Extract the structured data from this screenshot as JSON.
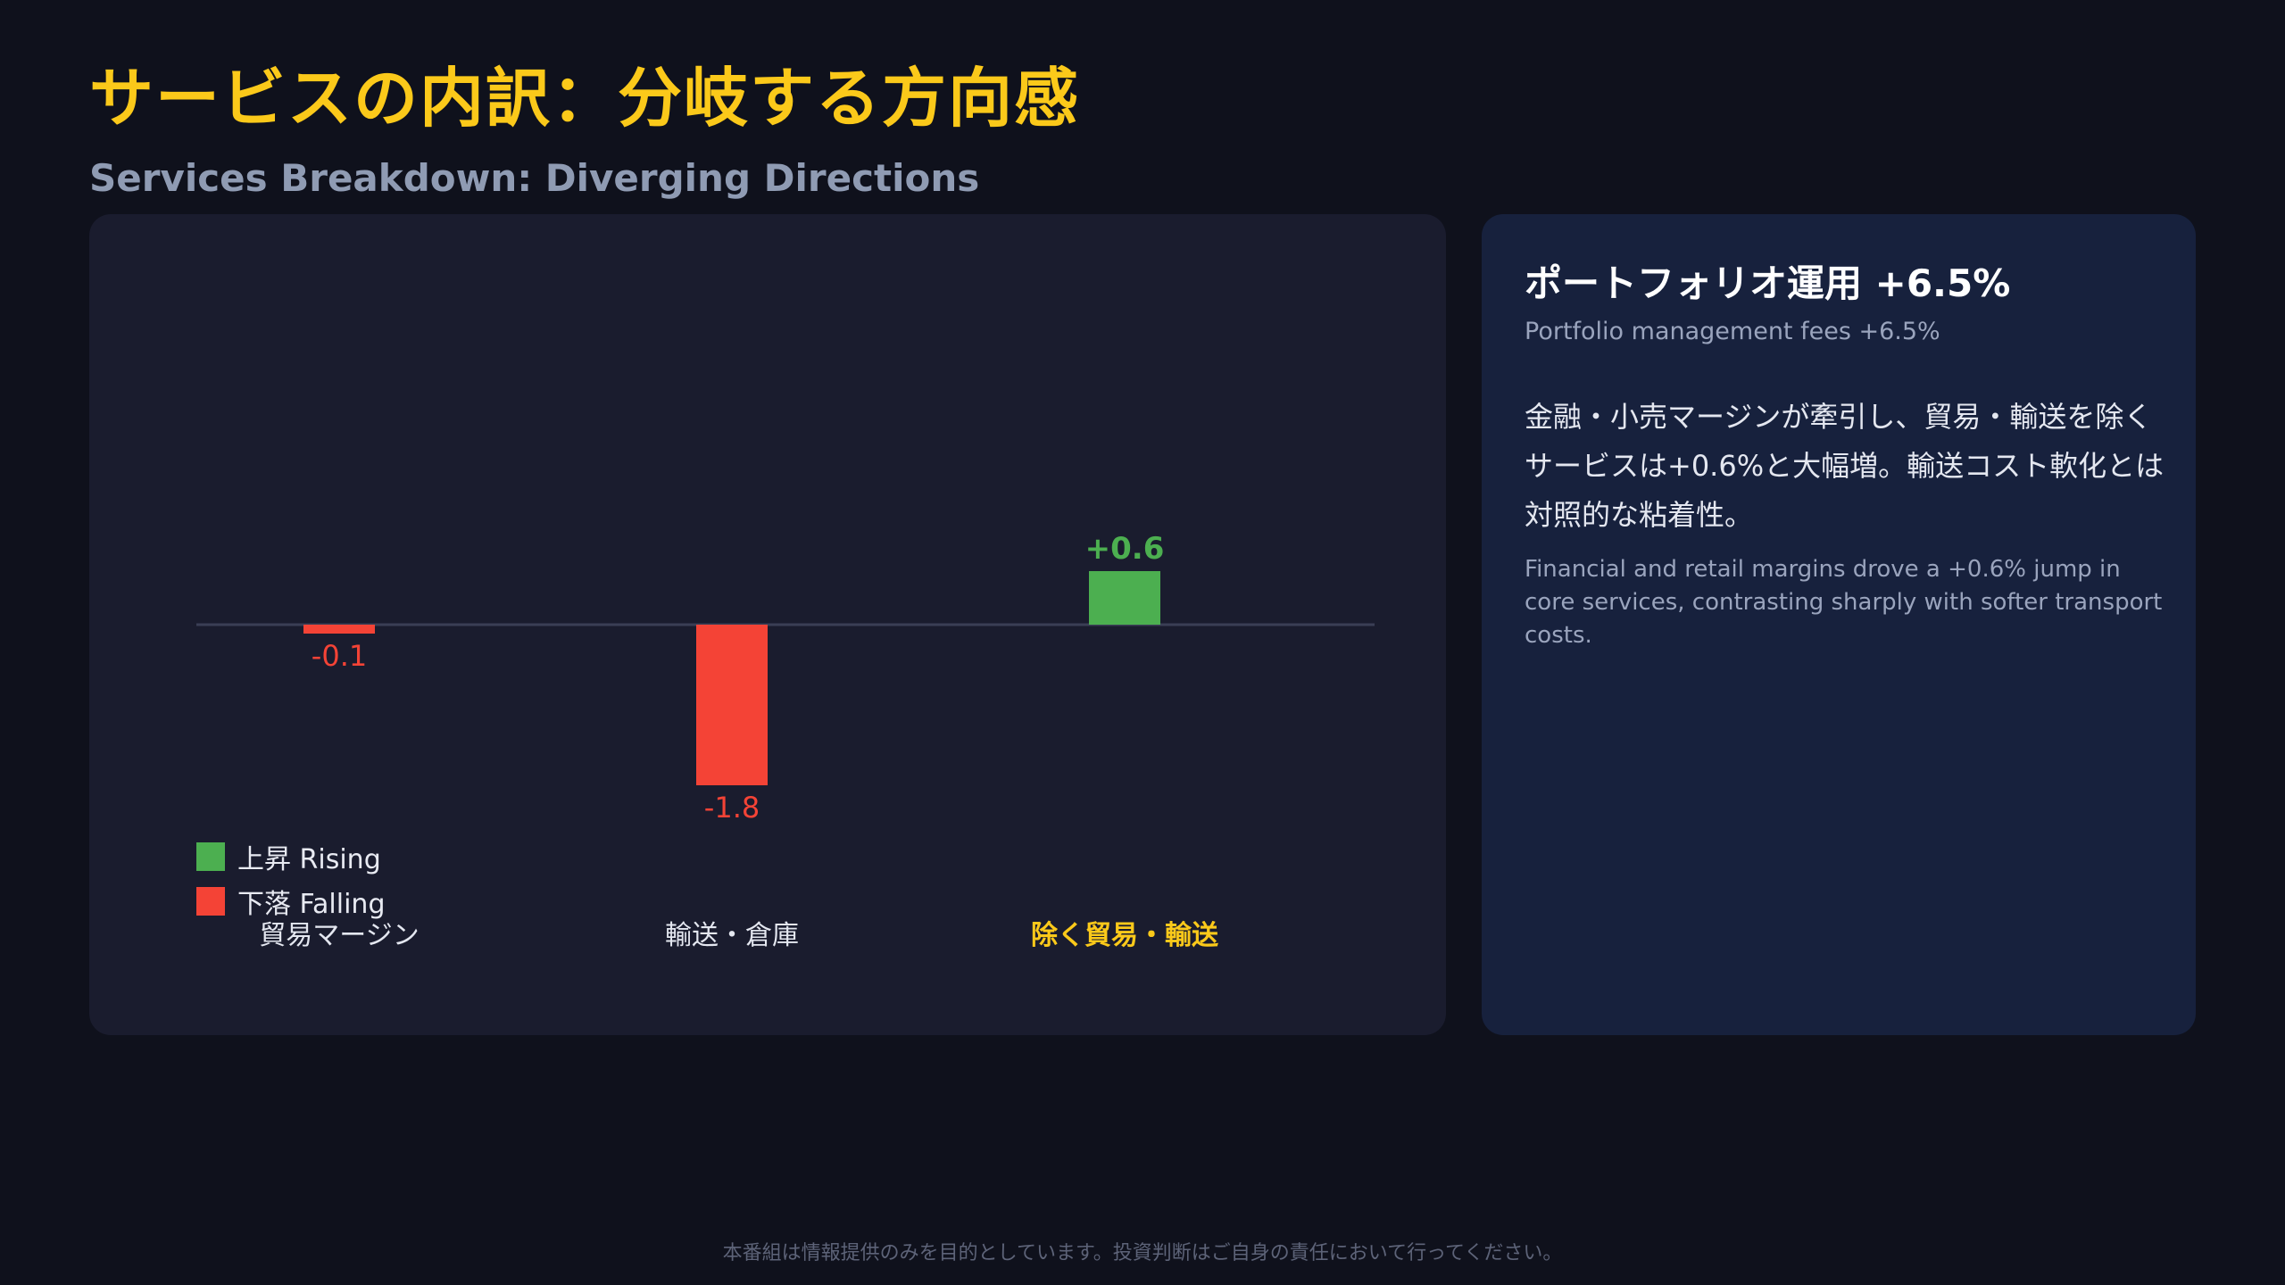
{
  "header": {
    "title_jp": "サービスの内訳：分岐する方向感",
    "title_en": "Services Breakdown: Diverging Directions"
  },
  "chart_data": {
    "type": "bar",
    "categories": [
      "貿易マージン",
      "輸送・倉庫",
      "除く貿易・輸送"
    ],
    "values": [
      -0.1,
      -1.8,
      0.6
    ],
    "data_labels": [
      "-0.1",
      "-1.8",
      "+0.6"
    ],
    "highlight_category": "除く貿易・輸送",
    "legend": [
      {
        "label": "上昇 Rising",
        "color": "#4caf50"
      },
      {
        "label": "下落 Falling",
        "color": "#f44336"
      }
    ],
    "legend_position": "bottom-left",
    "grid": false,
    "colors": {
      "rising": "#4caf50",
      "falling": "#f44336",
      "highlight": "#fbc91a",
      "baseline": "#3a3e55"
    }
  },
  "info": {
    "title": "ポートフォリオ運用 +6.5%",
    "subtitle": "Portfolio management fees +6.5%",
    "body_jp": "金融・小売マージンが牽引し、貿易・輸送を除くサービスは+0.6%と大幅増。輸送コスト軟化とは対照的な粘着性。",
    "body_en": "Financial and retail margins drove a +0.6% jump in core services, contrasting sharply with softer transport costs."
  },
  "footer": {
    "disclaimer": "本番組は情報提供のみを目的としています。投資判断はご自身の責任において行ってください。"
  }
}
